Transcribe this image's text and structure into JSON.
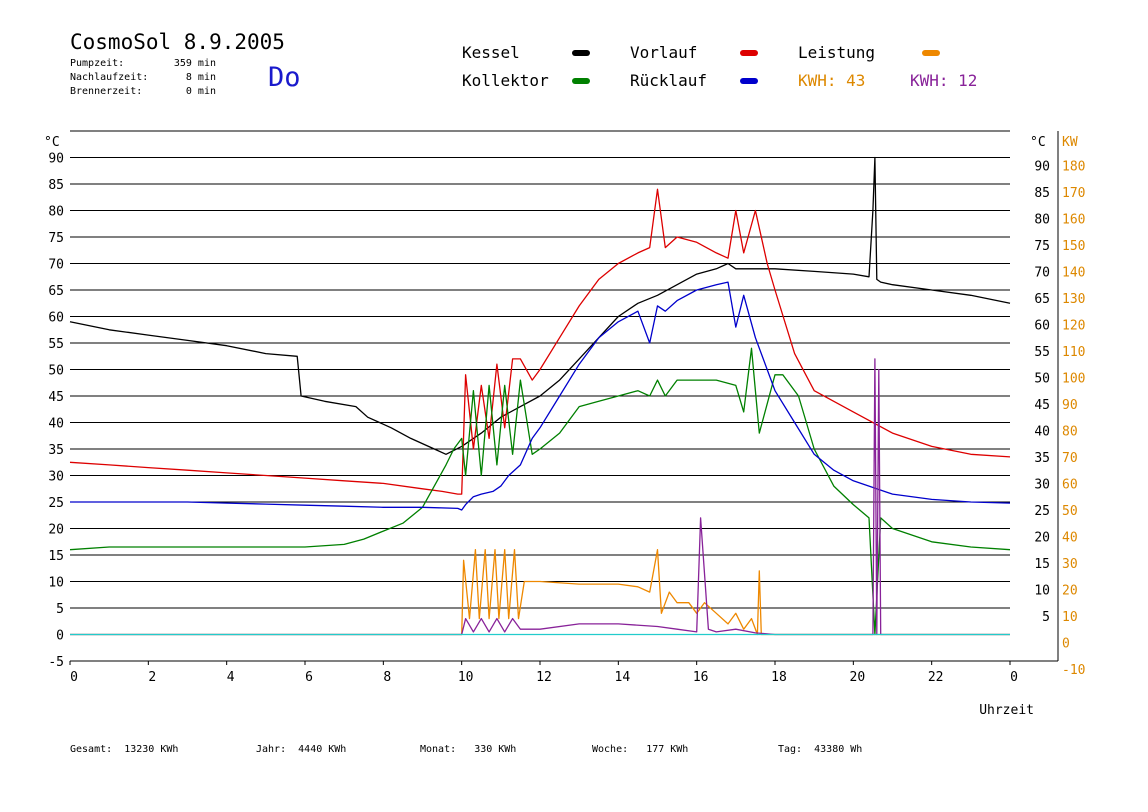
{
  "header": {
    "title": "CosmoSol 8.9.2005",
    "day": "Do",
    "stats": [
      {
        "label": "Pumpzeit:",
        "value": "359 min"
      },
      {
        "label": "Nachlaufzeit:",
        "value": "8 min"
      },
      {
        "label": "Brennerzeit:",
        "value": "0 min"
      }
    ]
  },
  "legend": [
    {
      "label": "Kessel",
      "color": "#000000"
    },
    {
      "label": "Vorlauf",
      "color": "#dd0000"
    },
    {
      "label": "Leistung",
      "color": "#ee8800"
    },
    {
      "label": "Kollektor",
      "color": "#008000"
    },
    {
      "label": "Rücklauf",
      "color": "#0000cc"
    }
  ],
  "kwh": [
    {
      "label": "KWH:",
      "value": "43",
      "color": "#dd8800"
    },
    {
      "label": "KWH:",
      "value": "12",
      "color": "#882299"
    }
  ],
  "footer": [
    {
      "label": "Gesamt:",
      "value": "13230 KWh"
    },
    {
      "label": "Jahr:",
      "value": "4440 KWh"
    },
    {
      "label": "Monat:",
      "value": "330 KWh"
    },
    {
      "label": "Woche:",
      "value": "177 KWh"
    },
    {
      "label": "Tag:",
      "value": "43380 Wh"
    }
  ],
  "chart_data": {
    "type": "line",
    "xlabel": "Uhrzeit",
    "ylabel_left": "°C",
    "ylabel_right_temp": "°C",
    "ylabel_right_power": "KW",
    "xlim": [
      0,
      24
    ],
    "ylim": [
      -5,
      95
    ],
    "x_ticks": [
      "0",
      "2",
      "4",
      "6",
      "8",
      "10",
      "12",
      "14",
      "16",
      "18",
      "20",
      "22",
      "0"
    ],
    "y_ticks_left": [
      "-5",
      "0",
      "5",
      "10",
      "15",
      "20",
      "25",
      "30",
      "35",
      "40",
      "45",
      "50",
      "55",
      "60",
      "65",
      "70",
      "75",
      "80",
      "85",
      "90"
    ],
    "y_ticks_right_temp": [
      "5",
      "10",
      "15",
      "20",
      "25",
      "30",
      "35",
      "40",
      "45",
      "50",
      "55",
      "60",
      "65",
      "70",
      "75",
      "80",
      "85",
      "90"
    ],
    "y_ticks_right_power": [
      "-10",
      "0",
      "10",
      "20",
      "30",
      "40",
      "50",
      "60",
      "70",
      "80",
      "90",
      "100",
      "110",
      "120",
      "130",
      "140",
      "150",
      "160",
      "170",
      "180"
    ],
    "grid": true,
    "series": [
      {
        "name": "Kessel",
        "color": "#000000",
        "x": [
          0,
          1,
          2,
          3,
          4,
          5,
          5.8,
          5.9,
          6.5,
          7.3,
          7.6,
          8.2,
          8.7,
          9.3,
          9.6,
          10.0,
          10.5,
          11.0,
          11.5,
          12.0,
          12.5,
          13.0,
          13.5,
          14.0,
          14.5,
          15.0,
          15.5,
          16.0,
          16.5,
          16.8,
          17.0,
          17.5,
          18.0,
          19.0,
          20.0,
          20.4,
          20.5,
          20.55,
          20.6,
          20.7,
          21.0,
          22.0,
          23.0,
          24.0
        ],
        "y": [
          59,
          57.5,
          56.5,
          55.5,
          54.5,
          53,
          52.5,
          45,
          44,
          43,
          41,
          39,
          37,
          35,
          34,
          35.5,
          38,
          41,
          43,
          45,
          48,
          52,
          56,
          60,
          62.5,
          64,
          66,
          68,
          69,
          70,
          69,
          69,
          69,
          68.5,
          68,
          67.5,
          80,
          90,
          67,
          66.5,
          66,
          65,
          64,
          62.5
        ]
      },
      {
        "name": "Vorlauf",
        "color": "#dd0000",
        "x": [
          0,
          1,
          2,
          3,
          4,
          5,
          6,
          7,
          8,
          9,
          9.5,
          9.9,
          10.0,
          10.1,
          10.3,
          10.5,
          10.7,
          10.9,
          11.1,
          11.3,
          11.5,
          11.8,
          12.0,
          12.5,
          13.0,
          13.5,
          14.0,
          14.5,
          14.8,
          15.0,
          15.2,
          15.5,
          16.0,
          16.5,
          16.8,
          17.0,
          17.2,
          17.5,
          17.8,
          18.0,
          18.5,
          19.0,
          20.0,
          21.0,
          22.0,
          23.0,
          24.0
        ],
        "y": [
          32.5,
          32,
          31.5,
          31,
          30.5,
          30,
          29.5,
          29,
          28.5,
          27.5,
          27,
          26.5,
          26.5,
          49,
          35,
          47,
          37,
          51,
          39,
          52,
          52,
          48,
          50,
          56,
          62,
          67,
          70,
          72,
          73,
          84,
          73,
          75,
          74,
          72,
          71,
          80,
          72,
          80,
          70,
          65,
          53,
          46,
          42,
          38,
          35.5,
          34,
          33.5
        ]
      },
      {
        "name": "Kollektor",
        "color": "#008000",
        "x": [
          0,
          1,
          2,
          3,
          4,
          5,
          6,
          7,
          7.5,
          8,
          8.5,
          9.0,
          9.3,
          9.6,
          9.8,
          10.0,
          10.1,
          10.3,
          10.5,
          10.7,
          10.9,
          11.1,
          11.3,
          11.5,
          11.8,
          12.0,
          12.5,
          13.0,
          13.5,
          14.0,
          14.5,
          14.8,
          15.0,
          15.2,
          15.5,
          16.0,
          16.5,
          17.0,
          17.2,
          17.4,
          17.6,
          18.0,
          18.2,
          18.6,
          19.0,
          19.5,
          20.0,
          20.4,
          20.55,
          20.7,
          21.0,
          22.0,
          23.0,
          24.0
        ],
        "y": [
          16,
          16.5,
          16.5,
          16.5,
          16.5,
          16.5,
          16.5,
          17,
          18,
          19.5,
          21,
          24,
          28,
          32,
          35,
          37,
          30,
          46,
          30,
          47,
          32,
          47,
          34,
          48,
          34,
          35,
          38,
          43,
          44,
          45,
          46,
          45,
          48,
          45,
          48,
          48,
          48,
          47,
          42,
          54,
          38,
          49,
          49,
          45,
          35,
          28,
          24.5,
          22,
          0,
          22,
          20,
          17.5,
          16.5,
          16
        ]
      },
      {
        "name": "Rücklauf",
        "color": "#0000cc",
        "x": [
          0,
          1,
          2,
          3,
          4,
          5,
          6,
          7,
          8,
          9,
          9.9,
          10.0,
          10.1,
          10.3,
          10.5,
          10.8,
          11.0,
          11.2,
          11.5,
          11.8,
          12.0,
          12.5,
          13.0,
          13.5,
          14.0,
          14.5,
          14.8,
          15.0,
          15.2,
          15.5,
          16.0,
          16.5,
          16.8,
          17.0,
          17.2,
          17.5,
          18.0,
          18.5,
          19.0,
          19.5,
          20.0,
          21.0,
          22.0,
          23.0,
          24.0
        ],
        "y": [
          25,
          25,
          25,
          25,
          24.8,
          24.6,
          24.4,
          24.2,
          24,
          24,
          23.8,
          23.5,
          24.5,
          26,
          26.5,
          27,
          28,
          30,
          32,
          37,
          39,
          45,
          51,
          56,
          59,
          61,
          55,
          62,
          61,
          63,
          65,
          66,
          66.5,
          58,
          64,
          56,
          46,
          40,
          34,
          31,
          29,
          26.5,
          25.5,
          25,
          24.8
        ]
      },
      {
        "name": "Leistung",
        "color": "#ee8800",
        "x": [
          0,
          9.9,
          10.0,
          10.05,
          10.2,
          10.35,
          10.45,
          10.6,
          10.7,
          10.85,
          10.95,
          11.1,
          11.2,
          11.35,
          11.45,
          11.6,
          12.0,
          13.0,
          14.0,
          14.5,
          14.8,
          15.0,
          15.1,
          15.3,
          15.5,
          15.8,
          16.0,
          16.2,
          16.5,
          16.8,
          17.0,
          17.2,
          17.4,
          17.55,
          17.6,
          17.65,
          17.8,
          18.0,
          21.0,
          24.0
        ],
        "y": [
          0,
          0,
          0,
          14,
          3,
          16,
          3,
          16,
          3,
          16,
          3,
          16,
          3,
          16,
          3,
          10,
          10,
          9.5,
          9.5,
          9,
          8,
          16,
          4,
          8,
          6,
          6,
          4,
          6,
          4,
          2,
          4,
          1,
          3,
          0,
          12,
          0,
          0,
          0,
          0,
          0
        ]
      },
      {
        "name": "KWH-2",
        "color": "#882299",
        "x": [
          0,
          10.0,
          10.1,
          10.3,
          10.5,
          10.7,
          10.9,
          11.1,
          11.3,
          11.5,
          12.0,
          13.0,
          14.0,
          15.0,
          15.5,
          16.0,
          16.1,
          16.3,
          16.5,
          17.0,
          17.5,
          18.0,
          20.5,
          20.55,
          20.6,
          20.65,
          20.7,
          21.0,
          24.0
        ],
        "y": [
          0,
          0,
          3,
          0.5,
          3,
          0.5,
          3,
          0.5,
          3,
          1,
          1,
          2,
          2,
          1.5,
          1,
          0.5,
          22,
          1,
          0.5,
          1,
          0.3,
          0,
          0,
          52,
          0,
          50,
          0,
          0,
          0
        ]
      },
      {
        "name": "Null",
        "color": "#22cccc",
        "x": [
          0,
          24
        ],
        "y": [
          0,
          0
        ]
      }
    ]
  }
}
